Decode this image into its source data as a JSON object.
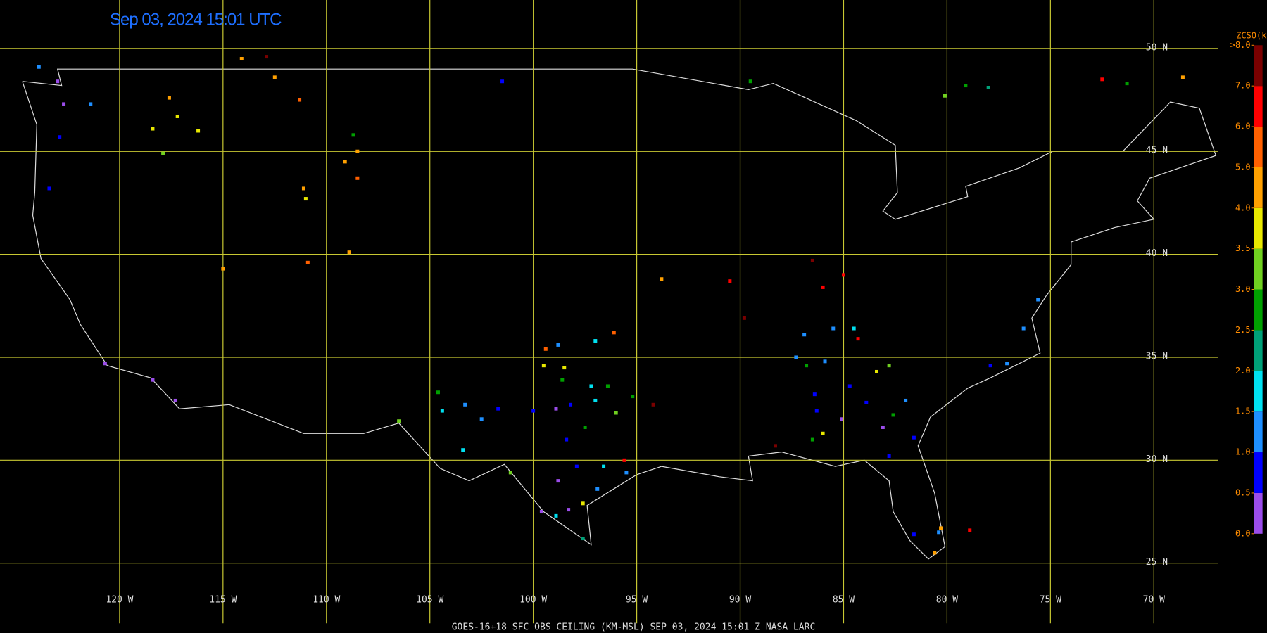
{
  "title": "Sep 03, 2024 15:01 UTC",
  "footer": "GOES-16+18  SFC OBS CEILING (KM-MSL)   SEP 03, 2024 15:01 Z   NASA LARC",
  "lat_lines": [
    {
      "value": 50,
      "label": "50 N"
    },
    {
      "value": 45,
      "label": "45 N"
    },
    {
      "value": 40,
      "label": "40 N"
    },
    {
      "value": 35,
      "label": "35 N"
    },
    {
      "value": 30,
      "label": "30 N"
    },
    {
      "value": 25,
      "label": "25 N"
    }
  ],
  "lon_lines": [
    {
      "value": -120,
      "label": "120 W"
    },
    {
      "value": -115,
      "label": "115 W"
    },
    {
      "value": -110,
      "label": "110 W"
    },
    {
      "value": -105,
      "label": "105 W"
    },
    {
      "value": -100,
      "label": "100 W"
    },
    {
      "value": -95,
      "label": "95 W"
    },
    {
      "value": -90,
      "label": "90 W"
    },
    {
      "value": -85,
      "label": "85 W"
    },
    {
      "value": -80,
      "label": "80 W"
    },
    {
      "value": -75,
      "label": "75 W"
    },
    {
      "value": -70,
      "label": "70 W"
    }
  ],
  "colorbar": {
    "title": "ZCSO(km)",
    "ticks": [
      {
        "value": 0,
        "label": "0.0"
      },
      {
        "value": 0.5,
        "label": "0.5"
      },
      {
        "value": 1,
        "label": "1.0"
      },
      {
        "value": 1.5,
        "label": "1.5"
      },
      {
        "value": 2,
        "label": "2.0"
      },
      {
        "value": 2.5,
        "label": "2.5"
      },
      {
        "value": 3,
        "label": "3.0"
      },
      {
        "value": 3.5,
        "label": "3.5"
      },
      {
        "value": 4,
        "label": "4.0"
      },
      {
        "value": 5,
        "label": "5.0"
      },
      {
        "value": 6,
        "label": "6.0"
      },
      {
        "value": 7,
        "label": "7.0"
      },
      {
        "value": 8,
        "label": ">8.0"
      }
    ],
    "colors": [
      "#9b4dea",
      "#0000ff",
      "#1e8fff",
      "#00e0f0",
      "#00a078",
      "#00a000",
      "#70d020",
      "#e8e800",
      "#ffa000",
      "#ff6000",
      "#ff0000",
      "#7a0000"
    ]
  },
  "obs": [
    {
      "lon": -123.0,
      "lat": 48.4,
      "ceiling": 0.3
    },
    {
      "lon": -122.7,
      "lat": 47.3,
      "ceiling": 0.3
    },
    {
      "lon": -122.9,
      "lat": 45.7,
      "ceiling": 0.8
    },
    {
      "lon": -123.9,
      "lat": 49.1,
      "ceiling": 1.2
    },
    {
      "lon": -121.4,
      "lat": 47.3,
      "ceiling": 1.2
    },
    {
      "lon": -123.4,
      "lat": 43.2,
      "ceiling": 0.8
    },
    {
      "lon": -118.4,
      "lat": 46.1,
      "ceiling": 3.8
    },
    {
      "lon": -117.2,
      "lat": 46.7,
      "ceiling": 3.8
    },
    {
      "lon": -116.2,
      "lat": 46.0,
      "ceiling": 3.8
    },
    {
      "lon": -117.9,
      "lat": 44.9,
      "ceiling": 3.2
    },
    {
      "lon": -117.6,
      "lat": 47.6,
      "ceiling": 4.5
    },
    {
      "lon": -114.1,
      "lat": 49.5,
      "ceiling": 4.5
    },
    {
      "lon": -112.9,
      "lat": 49.6,
      "ceiling": 7.5
    },
    {
      "lon": -112.5,
      "lat": 48.6,
      "ceiling": 4.5
    },
    {
      "lon": -111.3,
      "lat": 47.5,
      "ceiling": 5.5
    },
    {
      "lon": -108.7,
      "lat": 45.8,
      "ceiling": 2.8
    },
    {
      "lon": -108.5,
      "lat": 45.0,
      "ceiling": 4.5
    },
    {
      "lon": -109.1,
      "lat": 44.5,
      "ceiling": 4.5
    },
    {
      "lon": -108.5,
      "lat": 43.7,
      "ceiling": 5.5
    },
    {
      "lon": -111.1,
      "lat": 43.2,
      "ceiling": 4.5
    },
    {
      "lon": -111.0,
      "lat": 42.7,
      "ceiling": 3.8
    },
    {
      "lon": -115.0,
      "lat": 39.3,
      "ceiling": 4.5
    },
    {
      "lon": -110.9,
      "lat": 39.6,
      "ceiling": 5.5
    },
    {
      "lon": -108.9,
      "lat": 40.1,
      "ceiling": 4.5
    },
    {
      "lon": -101.5,
      "lat": 48.4,
      "ceiling": 0.8
    },
    {
      "lon": -120.7,
      "lat": 34.7,
      "ceiling": 0.3
    },
    {
      "lon": -118.4,
      "lat": 33.9,
      "ceiling": 0.3
    },
    {
      "lon": -117.3,
      "lat": 32.9,
      "ceiling": 0.3
    },
    {
      "lon": -93.8,
      "lat": 38.8,
      "ceiling": 4.5
    },
    {
      "lon": -89.5,
      "lat": 48.4,
      "ceiling": 2.8
    },
    {
      "lon": -80.1,
      "lat": 47.7,
      "ceiling": 3.2
    },
    {
      "lon": -79.1,
      "lat": 48.2,
      "ceiling": 2.8
    },
    {
      "lon": -78.0,
      "lat": 48.1,
      "ceiling": 2.3
    },
    {
      "lon": -72.5,
      "lat": 48.5,
      "ceiling": 6.5
    },
    {
      "lon": -71.3,
      "lat": 48.3,
      "ceiling": 2.8
    },
    {
      "lon": -68.6,
      "lat": 48.6,
      "ceiling": 4.5
    },
    {
      "lon": -86.5,
      "lat": 39.7,
      "ceiling": 7.5
    },
    {
      "lon": -86.0,
      "lat": 38.4,
      "ceiling": 6.5
    },
    {
      "lon": -85.0,
      "lat": 39.0,
      "ceiling": 6.5
    },
    {
      "lon": -90.5,
      "lat": 38.7,
      "ceiling": 6.5
    },
    {
      "lon": -89.8,
      "lat": 36.9,
      "ceiling": 7.5
    },
    {
      "lon": -99.4,
      "lat": 35.4,
      "ceiling": 5.5
    },
    {
      "lon": -98.8,
      "lat": 35.6,
      "ceiling": 1.2
    },
    {
      "lon": -97.0,
      "lat": 35.8,
      "ceiling": 1.8
    },
    {
      "lon": -96.1,
      "lat": 36.2,
      "ceiling": 5.5
    },
    {
      "lon": -99.5,
      "lat": 34.6,
      "ceiling": 3.8
    },
    {
      "lon": -98.5,
      "lat": 34.5,
      "ceiling": 3.8
    },
    {
      "lon": -98.6,
      "lat": 33.9,
      "ceiling": 2.8
    },
    {
      "lon": -97.2,
      "lat": 33.6,
      "ceiling": 1.8
    },
    {
      "lon": -96.4,
      "lat": 33.6,
      "ceiling": 2.8
    },
    {
      "lon": -104.6,
      "lat": 33.3,
      "ceiling": 2.8
    },
    {
      "lon": -104.4,
      "lat": 32.4,
      "ceiling": 1.8
    },
    {
      "lon": -103.3,
      "lat": 32.7,
      "ceiling": 1.2
    },
    {
      "lon": -102.5,
      "lat": 32.0,
      "ceiling": 1.2
    },
    {
      "lon": -101.7,
      "lat": 32.5,
      "ceiling": 0.8
    },
    {
      "lon": -100.0,
      "lat": 32.4,
      "ceiling": 0.8
    },
    {
      "lon": -98.9,
      "lat": 32.5,
      "ceiling": 0.3
    },
    {
      "lon": -98.2,
      "lat": 32.7,
      "ceiling": 0.8
    },
    {
      "lon": -97.0,
      "lat": 32.9,
      "ceiling": 1.8
    },
    {
      "lon": -97.5,
      "lat": 31.6,
      "ceiling": 2.8
    },
    {
      "lon": -95.2,
      "lat": 33.1,
      "ceiling": 2.8
    },
    {
      "lon": -96.0,
      "lat": 32.3,
      "ceiling": 3.2
    },
    {
      "lon": -98.4,
      "lat": 31.0,
      "ceiling": 0.8
    },
    {
      "lon": -97.9,
      "lat": 29.7,
      "ceiling": 0.8
    },
    {
      "lon": -96.6,
      "lat": 29.7,
      "ceiling": 1.8
    },
    {
      "lon": -95.6,
      "lat": 30.0,
      "ceiling": 6.5
    },
    {
      "lon": -95.5,
      "lat": 29.4,
      "ceiling": 1.2
    },
    {
      "lon": -96.9,
      "lat": 28.6,
      "ceiling": 1.2
    },
    {
      "lon": -97.6,
      "lat": 27.9,
      "ceiling": 3.8
    },
    {
      "lon": -98.3,
      "lat": 27.6,
      "ceiling": 0.3
    },
    {
      "lon": -98.9,
      "lat": 27.3,
      "ceiling": 1.8
    },
    {
      "lon": -99.6,
      "lat": 27.5,
      "ceiling": 0.3
    },
    {
      "lon": -101.1,
      "lat": 29.4,
      "ceiling": 3.2
    },
    {
      "lon": -98.8,
      "lat": 29.0,
      "ceiling": 0.3
    },
    {
      "lon": -103.4,
      "lat": 30.5,
      "ceiling": 1.8
    },
    {
      "lon": -106.5,
      "lat": 31.9,
      "ceiling": 3.2
    },
    {
      "lon": -97.6,
      "lat": 26.2,
      "ceiling": 2.3
    },
    {
      "lon": -94.2,
      "lat": 32.7,
      "ceiling": 7.5
    },
    {
      "lon": -86.9,
      "lat": 36.1,
      "ceiling": 1.2
    },
    {
      "lon": -85.5,
      "lat": 36.4,
      "ceiling": 1.2
    },
    {
      "lon": -84.5,
      "lat": 36.4,
      "ceiling": 1.8
    },
    {
      "lon": -84.3,
      "lat": 35.9,
      "ceiling": 6.5
    },
    {
      "lon": -87.3,
      "lat": 35.0,
      "ceiling": 1.2
    },
    {
      "lon": -86.8,
      "lat": 34.6,
      "ceiling": 2.8
    },
    {
      "lon": -85.9,
      "lat": 34.8,
      "ceiling": 1.2
    },
    {
      "lon": -82.8,
      "lat": 34.6,
      "ceiling": 3.2
    },
    {
      "lon": -83.4,
      "lat": 34.3,
      "ceiling": 3.8
    },
    {
      "lon": -84.7,
      "lat": 33.6,
      "ceiling": 0.8
    },
    {
      "lon": -83.9,
      "lat": 32.8,
      "ceiling": 0.8
    },
    {
      "lon": -86.4,
      "lat": 33.2,
      "ceiling": 0.8
    },
    {
      "lon": -86.3,
      "lat": 32.4,
      "ceiling": 0.8
    },
    {
      "lon": -85.1,
      "lat": 32.0,
      "ceiling": 0.3
    },
    {
      "lon": -83.1,
      "lat": 31.6,
      "ceiling": 0.3
    },
    {
      "lon": -82.6,
      "lat": 32.2,
      "ceiling": 2.8
    },
    {
      "lon": -82.0,
      "lat": 32.9,
      "ceiling": 1.2
    },
    {
      "lon": -81.6,
      "lat": 31.1,
      "ceiling": 0.8
    },
    {
      "lon": -82.8,
      "lat": 30.2,
      "ceiling": 0.8
    },
    {
      "lon": -86.5,
      "lat": 31.0,
      "ceiling": 2.8
    },
    {
      "lon": -86.0,
      "lat": 31.3,
      "ceiling": 3.8
    },
    {
      "lon": -88.3,
      "lat": 30.7,
      "ceiling": 7.5
    },
    {
      "lon": -81.6,
      "lat": 26.4,
      "ceiling": 0.8
    },
    {
      "lon": -80.4,
      "lat": 26.5,
      "ceiling": 1.2
    },
    {
      "lon": -80.3,
      "lat": 26.7,
      "ceiling": 4.5
    },
    {
      "lon": -80.6,
      "lat": 25.5,
      "ceiling": 4.5
    },
    {
      "lon": -78.9,
      "lat": 26.6,
      "ceiling": 6.5
    },
    {
      "lon": -77.1,
      "lat": 34.7,
      "ceiling": 1.2
    },
    {
      "lon": -76.3,
      "lat": 36.4,
      "ceiling": 1.2
    },
    {
      "lon": -75.6,
      "lat": 37.8,
      "ceiling": 1.2
    },
    {
      "lon": -77.9,
      "lat": 34.6,
      "ceiling": 0.8
    }
  ]
}
